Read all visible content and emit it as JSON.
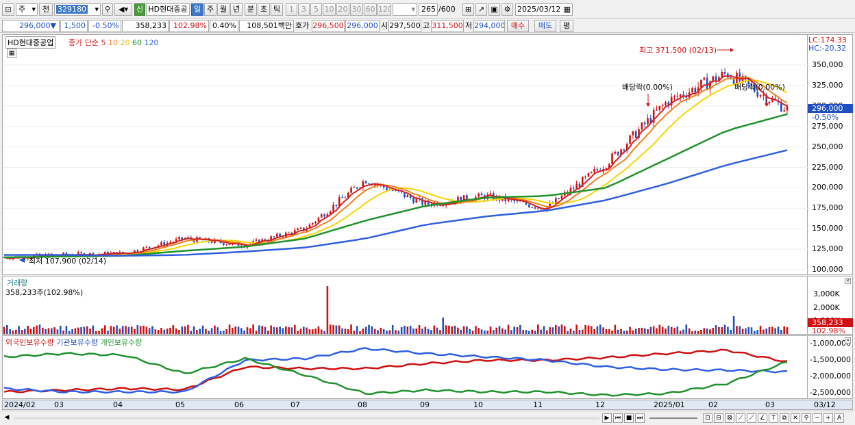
{
  "toolbar": {
    "period_type": "주",
    "prev": "전",
    "code": "329180",
    "stock_name": "HD현대중공",
    "badge": "신",
    "periods": [
      "일",
      "주",
      "월",
      "년",
      "분",
      "초",
      "틱"
    ],
    "selected_period": "일",
    "intervals": [
      "1",
      "3",
      "5",
      "10",
      "20",
      "30",
      "60",
      "120"
    ],
    "count_current": "265",
    "count_total": "/600",
    "date": "2025/03/12"
  },
  "quote": {
    "price": "296,000",
    "arrow": "▼",
    "change": "1,500",
    "change_pct": "-0.50%",
    "volume": "358,233",
    "volume_ratio": "102.98%",
    "turnover": "0.40%",
    "amount": "108,501백만",
    "bid_label": "호가",
    "bid": "296,500",
    "ask": "296,000",
    "open_label": "시",
    "open": "297,500",
    "high_label": "고",
    "high": "311,500",
    "low_label": "저",
    "low": "294,000",
    "buy": "매수",
    "sell": "매도",
    "avg": "평"
  },
  "price_panel": {
    "title": "HD현대중공업",
    "ma_label": "종가 단순",
    "ma_periods": [
      "5",
      "10",
      "20",
      "60",
      "120"
    ],
    "lc": "LC:174.33",
    "hc": "HC:-20.32",
    "high_note": "최고 371,500 (02/13)",
    "low_note": "최저 107,900 (02/14)",
    "div_note1": "배당락(0.00%)",
    "div_note2": "배당락(0.00%)",
    "price_tag": "296,000",
    "pct_tag": "-0.50%",
    "y_ticks": [
      "350,000",
      "325,000",
      "300,000",
      "275,000",
      "250,000",
      "225,000",
      "200,000",
      "175,000",
      "150,000",
      "125,000",
      "100,000"
    ]
  },
  "volume_panel": {
    "title": "거래량",
    "info": "358,233주(102.98%)",
    "y_ticks": [
      "3,000K",
      "2,000K",
      "1,000K"
    ],
    "tag1": "358,233",
    "tag2": "102.98%"
  },
  "holder_panel": {
    "series": [
      "외국인보유수량",
      "기관보유수량",
      "개인보유수량"
    ],
    "y_ticks": [
      "-1,000,000",
      "-1,500,000",
      "-2,000,000",
      "-2,500,000"
    ]
  },
  "x_axis": [
    "2024/02",
    "03",
    "04",
    "05",
    "06",
    "07",
    "08",
    "09",
    "10",
    "11",
    "12",
    "2025/01",
    "02",
    "03",
    "03/12"
  ],
  "colors": {
    "ma5": "#d42020",
    "ma10": "#f08020",
    "ma20": "#f5d500",
    "ma60": "#20922e",
    "ma120": "#2f5fe0",
    "up": "#d01010",
    "down": "#1f4fc1"
  },
  "chart_data": {
    "type": "line",
    "x": [
      "2024/02",
      "2024/03",
      "2024/04",
      "2024/05",
      "2024/06",
      "2024/07",
      "2024/08",
      "2024/09",
      "2024/10",
      "2024/11",
      "2024/12",
      "2025/01",
      "2025/02",
      "2025/03"
    ],
    "series": [
      {
        "name": "종가",
        "values": [
          115000,
          118000,
          120000,
          138000,
          130000,
          150000,
          210000,
          180000,
          190000,
          175000,
          230000,
          305000,
          340000,
          296000
        ]
      },
      {
        "name": "60",
        "values": [
          115000,
          116000,
          117000,
          123000,
          128000,
          138000,
          160000,
          178000,
          188000,
          190000,
          200000,
          235000,
          270000,
          290000
        ]
      },
      {
        "name": "120",
        "values": [
          118000,
          118000,
          117000,
          118000,
          122000,
          127000,
          138000,
          155000,
          165000,
          172000,
          185000,
          205000,
          228000,
          246000
        ]
      }
    ],
    "holders": [
      {
        "name": "외국인보유수량",
        "values": [
          -2450000,
          -2400000,
          -2350000,
          -2380000,
          -1700000,
          -1750000,
          -1750000,
          -1600000,
          -1500000,
          -1500000,
          -1420000,
          -1300000,
          -1200000,
          -1550000
        ]
      },
      {
        "name": "기관보유수량",
        "values": [
          -2350000,
          -2450000,
          -2450000,
          -2450000,
          -1500000,
          -1450000,
          -1150000,
          -1300000,
          -1400000,
          -1500000,
          -1700000,
          -1780000,
          -1800000,
          -1850000
        ]
      },
      {
        "name": "개인보유수량",
        "values": [
          -1400000,
          -1300000,
          -1350000,
          -1900000,
          -1450000,
          -1950000,
          -2500000,
          -2400000,
          -2450000,
          -2450000,
          -2550000,
          -2500000,
          -2200000,
          -1550000
        ]
      }
    ],
    "ylim": [
      100000,
      375000
    ]
  }
}
